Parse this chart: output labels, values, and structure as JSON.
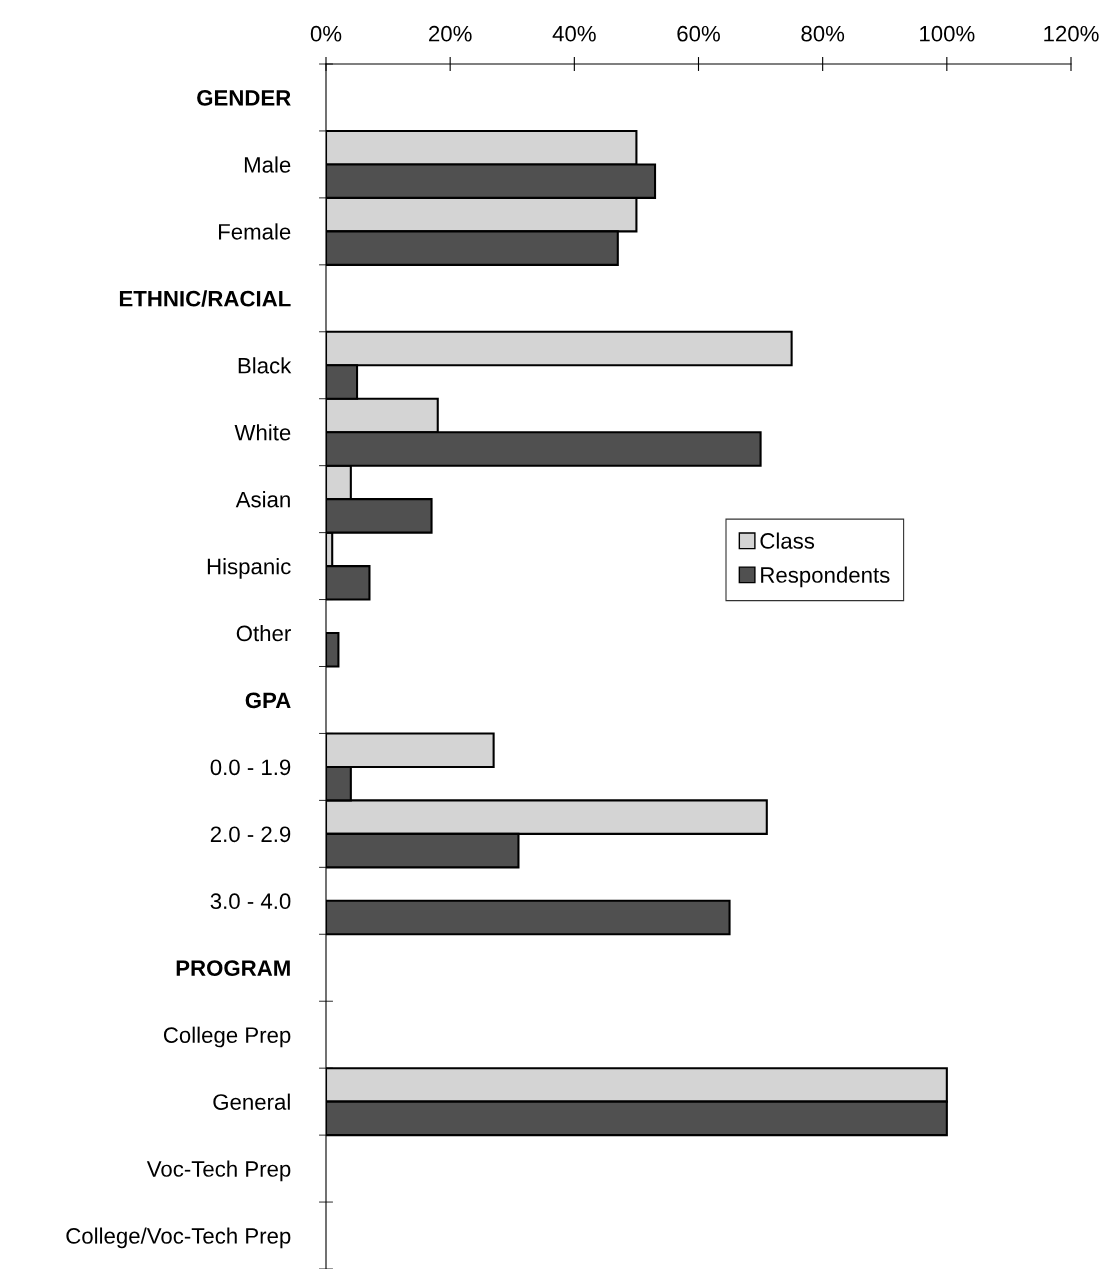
{
  "chart_data": {
    "type": "bar",
    "orientation": "horizontal",
    "categories": [
      "GENDER",
      "Male",
      "Female",
      "ETHNIC/RACIAL",
      "Black",
      "White",
      "Asian",
      "Hispanic",
      "Other",
      "GPA",
      "0.0 - 1.9",
      "2.0 - 2.9",
      "3.0 - 4.0",
      "PROGRAM",
      "College Prep",
      "General",
      "Voc-Tech Prep",
      "College/Voc-Tech Prep"
    ],
    "series": [
      {
        "name": "Class",
        "color": "#d4d4d4",
        "values": [
          null,
          50,
          50,
          null,
          75,
          18,
          4,
          1,
          0,
          null,
          27,
          71,
          0,
          null,
          0,
          100,
          0,
          0
        ]
      },
      {
        "name": "Respondents",
        "color": "#505050",
        "values": [
          null,
          53,
          47,
          null,
          5,
          70,
          17,
          7,
          2,
          null,
          4,
          31,
          65,
          null,
          0,
          100,
          0,
          0
        ]
      }
    ],
    "xlim": [
      0,
      120
    ],
    "xticks": [
      {
        "value": 0,
        "label": "0%"
      },
      {
        "value": 20,
        "label": "20%"
      },
      {
        "value": 40,
        "label": "40%"
      },
      {
        "value": 60,
        "label": "60%"
      },
      {
        "value": 80,
        "label": "80%"
      },
      {
        "value": 100,
        "label": "100%"
      },
      {
        "value": 120,
        "label": "120%"
      }
    ],
    "grid": false,
    "legend": "right"
  }
}
